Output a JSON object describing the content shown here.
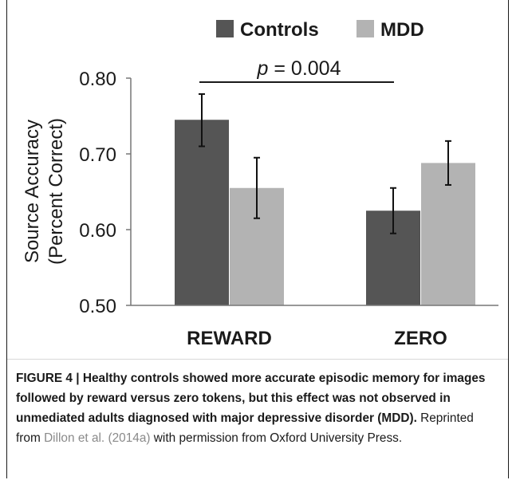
{
  "chart_data": {
    "type": "bar",
    "categories": [
      "REWARD",
      "ZERO"
    ],
    "series": [
      {
        "name": "Controls",
        "color": "#555555",
        "values": [
          0.745,
          0.625
        ],
        "error": [
          [
            0.71,
            0.779
          ],
          [
            0.595,
            0.655
          ]
        ]
      },
      {
        "name": "MDD",
        "color": "#b3b3b3",
        "values": [
          0.655,
          0.688
        ],
        "error": [
          [
            0.615,
            0.695
          ],
          [
            0.659,
            0.717
          ]
        ]
      }
    ],
    "ylabel_line1": "Source Accuracy",
    "ylabel_line2": "(Percent Correct)",
    "ylim": [
      0.5,
      0.8
    ],
    "yticks": [
      "0.50",
      "0.60",
      "0.70",
      "0.80"
    ],
    "yticks_values": [
      0.5,
      0.6,
      0.7,
      0.8
    ],
    "legend_position": "top-right",
    "annotation": {
      "p_symbol": "p",
      "p_rest": " = 0.004"
    }
  },
  "caption": {
    "label": "FIGURE 4 | Healthy controls showed more accurate episodic memory for images followed by reward versus zero tokens, but this effect was not observed in unmediated adults diagnosed with major depressive disorder (MDD).",
    "reprint_prefix": " Reprinted from ",
    "citation": "Dillon et al. (2014a)",
    "reprint_suffix": " with permission from Oxford University Press."
  }
}
